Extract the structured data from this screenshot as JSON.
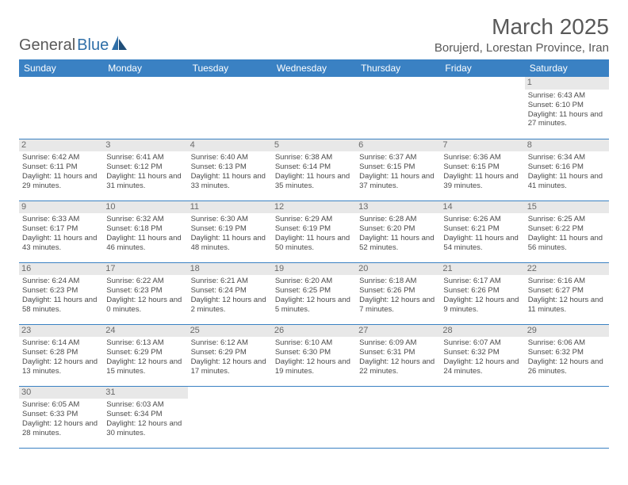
{
  "logo": {
    "part1": "General",
    "part2": "Blue"
  },
  "title": "March 2025",
  "location": "Borujerd, Lorestan Province, Iran",
  "header_bg": "#3a81c3",
  "header_text_color": "#ffffff",
  "daynum_bg": "#e8e8e8",
  "cell_border_color": "#3a81c3",
  "text_color": "#4a4a4a",
  "weekdays": [
    "Sunday",
    "Monday",
    "Tuesday",
    "Wednesday",
    "Thursday",
    "Friday",
    "Saturday"
  ],
  "weeks": [
    [
      null,
      null,
      null,
      null,
      null,
      null,
      {
        "n": "1",
        "sr": "Sunrise: 6:43 AM",
        "ss": "Sunset: 6:10 PM",
        "dl": "Daylight: 11 hours and 27 minutes."
      }
    ],
    [
      {
        "n": "2",
        "sr": "Sunrise: 6:42 AM",
        "ss": "Sunset: 6:11 PM",
        "dl": "Daylight: 11 hours and 29 minutes."
      },
      {
        "n": "3",
        "sr": "Sunrise: 6:41 AM",
        "ss": "Sunset: 6:12 PM",
        "dl": "Daylight: 11 hours and 31 minutes."
      },
      {
        "n": "4",
        "sr": "Sunrise: 6:40 AM",
        "ss": "Sunset: 6:13 PM",
        "dl": "Daylight: 11 hours and 33 minutes."
      },
      {
        "n": "5",
        "sr": "Sunrise: 6:38 AM",
        "ss": "Sunset: 6:14 PM",
        "dl": "Daylight: 11 hours and 35 minutes."
      },
      {
        "n": "6",
        "sr": "Sunrise: 6:37 AM",
        "ss": "Sunset: 6:15 PM",
        "dl": "Daylight: 11 hours and 37 minutes."
      },
      {
        "n": "7",
        "sr": "Sunrise: 6:36 AM",
        "ss": "Sunset: 6:15 PM",
        "dl": "Daylight: 11 hours and 39 minutes."
      },
      {
        "n": "8",
        "sr": "Sunrise: 6:34 AM",
        "ss": "Sunset: 6:16 PM",
        "dl": "Daylight: 11 hours and 41 minutes."
      }
    ],
    [
      {
        "n": "9",
        "sr": "Sunrise: 6:33 AM",
        "ss": "Sunset: 6:17 PM",
        "dl": "Daylight: 11 hours and 43 minutes."
      },
      {
        "n": "10",
        "sr": "Sunrise: 6:32 AM",
        "ss": "Sunset: 6:18 PM",
        "dl": "Daylight: 11 hours and 46 minutes."
      },
      {
        "n": "11",
        "sr": "Sunrise: 6:30 AM",
        "ss": "Sunset: 6:19 PM",
        "dl": "Daylight: 11 hours and 48 minutes."
      },
      {
        "n": "12",
        "sr": "Sunrise: 6:29 AM",
        "ss": "Sunset: 6:19 PM",
        "dl": "Daylight: 11 hours and 50 minutes."
      },
      {
        "n": "13",
        "sr": "Sunrise: 6:28 AM",
        "ss": "Sunset: 6:20 PM",
        "dl": "Daylight: 11 hours and 52 minutes."
      },
      {
        "n": "14",
        "sr": "Sunrise: 6:26 AM",
        "ss": "Sunset: 6:21 PM",
        "dl": "Daylight: 11 hours and 54 minutes."
      },
      {
        "n": "15",
        "sr": "Sunrise: 6:25 AM",
        "ss": "Sunset: 6:22 PM",
        "dl": "Daylight: 11 hours and 56 minutes."
      }
    ],
    [
      {
        "n": "16",
        "sr": "Sunrise: 6:24 AM",
        "ss": "Sunset: 6:23 PM",
        "dl": "Daylight: 11 hours and 58 minutes."
      },
      {
        "n": "17",
        "sr": "Sunrise: 6:22 AM",
        "ss": "Sunset: 6:23 PM",
        "dl": "Daylight: 12 hours and 0 minutes."
      },
      {
        "n": "18",
        "sr": "Sunrise: 6:21 AM",
        "ss": "Sunset: 6:24 PM",
        "dl": "Daylight: 12 hours and 2 minutes."
      },
      {
        "n": "19",
        "sr": "Sunrise: 6:20 AM",
        "ss": "Sunset: 6:25 PM",
        "dl": "Daylight: 12 hours and 5 minutes."
      },
      {
        "n": "20",
        "sr": "Sunrise: 6:18 AM",
        "ss": "Sunset: 6:26 PM",
        "dl": "Daylight: 12 hours and 7 minutes."
      },
      {
        "n": "21",
        "sr": "Sunrise: 6:17 AM",
        "ss": "Sunset: 6:26 PM",
        "dl": "Daylight: 12 hours and 9 minutes."
      },
      {
        "n": "22",
        "sr": "Sunrise: 6:16 AM",
        "ss": "Sunset: 6:27 PM",
        "dl": "Daylight: 12 hours and 11 minutes."
      }
    ],
    [
      {
        "n": "23",
        "sr": "Sunrise: 6:14 AM",
        "ss": "Sunset: 6:28 PM",
        "dl": "Daylight: 12 hours and 13 minutes."
      },
      {
        "n": "24",
        "sr": "Sunrise: 6:13 AM",
        "ss": "Sunset: 6:29 PM",
        "dl": "Daylight: 12 hours and 15 minutes."
      },
      {
        "n": "25",
        "sr": "Sunrise: 6:12 AM",
        "ss": "Sunset: 6:29 PM",
        "dl": "Daylight: 12 hours and 17 minutes."
      },
      {
        "n": "26",
        "sr": "Sunrise: 6:10 AM",
        "ss": "Sunset: 6:30 PM",
        "dl": "Daylight: 12 hours and 19 minutes."
      },
      {
        "n": "27",
        "sr": "Sunrise: 6:09 AM",
        "ss": "Sunset: 6:31 PM",
        "dl": "Daylight: 12 hours and 22 minutes."
      },
      {
        "n": "28",
        "sr": "Sunrise: 6:07 AM",
        "ss": "Sunset: 6:32 PM",
        "dl": "Daylight: 12 hours and 24 minutes."
      },
      {
        "n": "29",
        "sr": "Sunrise: 6:06 AM",
        "ss": "Sunset: 6:32 PM",
        "dl": "Daylight: 12 hours and 26 minutes."
      }
    ],
    [
      {
        "n": "30",
        "sr": "Sunrise: 6:05 AM",
        "ss": "Sunset: 6:33 PM",
        "dl": "Daylight: 12 hours and 28 minutes."
      },
      {
        "n": "31",
        "sr": "Sunrise: 6:03 AM",
        "ss": "Sunset: 6:34 PM",
        "dl": "Daylight: 12 hours and 30 minutes."
      },
      null,
      null,
      null,
      null,
      null
    ]
  ]
}
